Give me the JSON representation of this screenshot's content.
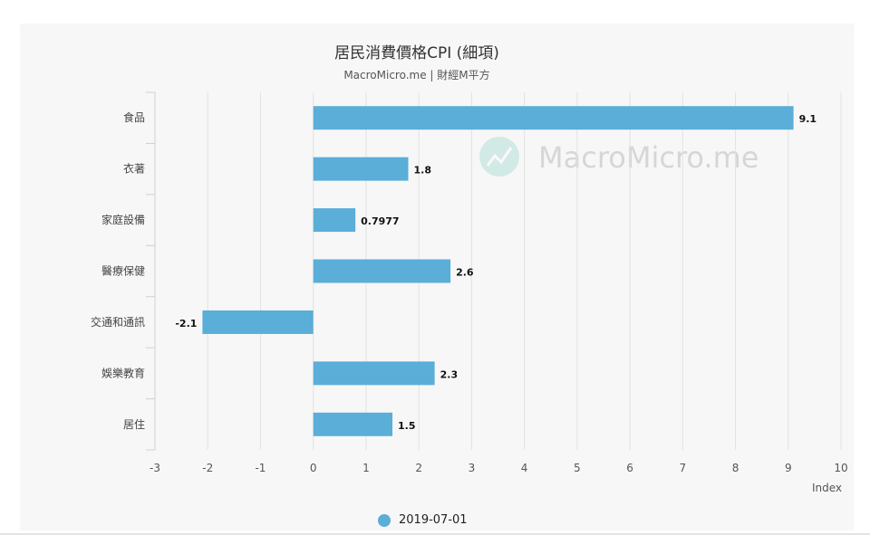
{
  "chart_data": {
    "type": "bar",
    "orientation": "horizontal",
    "title": "居民消費價格CPI (細項)",
    "subtitle": "MacroMicro.me | 財經M平方",
    "watermark": "MacroMicro.me",
    "categories": [
      "食品",
      "衣著",
      "家庭設備",
      "醫療保健",
      "交通和通訊",
      "娛樂教育",
      "居住"
    ],
    "series": [
      {
        "name": "2019-07-01",
        "color": "#5aaed8",
        "values": [
          9.1,
          1.8,
          0.7977,
          2.6,
          -2.1,
          2.3,
          1.5
        ],
        "labels": [
          "9.1",
          "1.8",
          "0.7977",
          "2.6",
          "-2.1",
          "2.3",
          "1.5"
        ]
      }
    ],
    "xlabel": "Index",
    "xlim": [
      -3,
      10
    ],
    "xticks": [
      "-3",
      "-2",
      "-1",
      "0",
      "1",
      "2",
      "3",
      "4",
      "5",
      "6",
      "7",
      "8",
      "9",
      "10"
    ],
    "grid": true,
    "legend_position": "bottom"
  }
}
